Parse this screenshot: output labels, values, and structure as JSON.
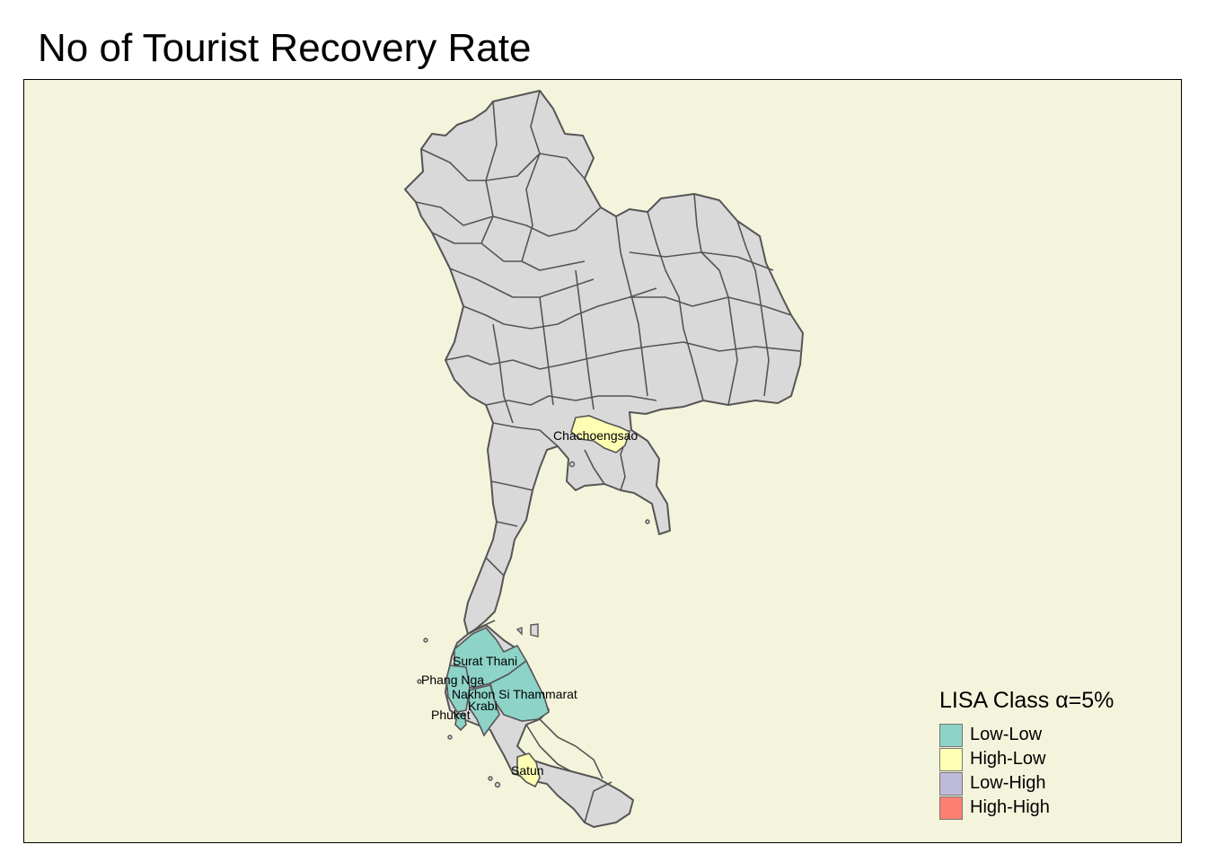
{
  "title": "No of Tourist Recovery Rate",
  "legend": {
    "title": "LISA Class α=5%",
    "items": [
      {
        "label": "Low-Low",
        "color": "#8dd3c7"
      },
      {
        "label": "High-Low",
        "color": "#ffffb3"
      },
      {
        "label": "Low-High",
        "color": "#bebada"
      },
      {
        "label": "High-High",
        "color": "#fb8072"
      }
    ]
  },
  "colors": {
    "background": "#f4f4dc",
    "province_fill": "#d9d9d9",
    "province_border": "#555555"
  },
  "labels": {
    "chachoengsao": "Chachoengsao",
    "surat_thani": "Surat Thani",
    "phang_nga": "Phang Nga",
    "nakhon_si_thammarat": "Nakhon Si Thammarat",
    "krabi": "Krabi",
    "phuket": "Phuket",
    "satun": "Satun"
  },
  "provinces": [
    {
      "label_key": "chachoengsao",
      "class": "High-Low"
    },
    {
      "label_key": "surat_thani",
      "class": "Low-Low"
    },
    {
      "label_key": "phang_nga",
      "class": "Low-Low"
    },
    {
      "label_key": "nakhon_si_thammarat",
      "class": "Low-Low"
    },
    {
      "label_key": "krabi",
      "class": "Low-Low"
    },
    {
      "label_key": "phuket",
      "class": "Low-Low"
    },
    {
      "label_key": "satun",
      "class": "High-Low"
    }
  ]
}
